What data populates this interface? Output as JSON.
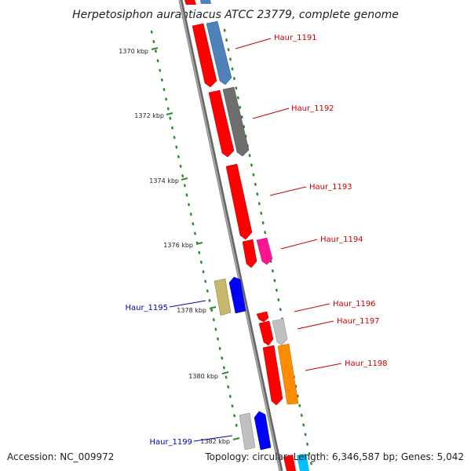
{
  "title": "Herpetosiphon aurantiacus ATCC 23779, complete genome",
  "footer": {
    "accession": "Accession: NC_009972",
    "summary": "Topology: circular; Length: 6,346,587 bp; Genes: 5,042"
  },
  "ruler": {
    "ticks": [
      "1370 kbp",
      "1372 kbp",
      "1374 kbp",
      "1376 kbp",
      "1378 kbp",
      "1380 kbp",
      "1382 kbp"
    ]
  },
  "genes": [
    {
      "label": "Haur_1191",
      "strand": "forward",
      "color": "#cc0000"
    },
    {
      "label": "Haur_1192",
      "strand": "forward",
      "color": "#cc0000"
    },
    {
      "label": "Haur_1193",
      "strand": "forward",
      "color": "#cc0000"
    },
    {
      "label": "Haur_1194",
      "strand": "forward",
      "color": "#cc0000"
    },
    {
      "label": "Haur_1195",
      "strand": "reverse",
      "color": "#0000bb"
    },
    {
      "label": "Haur_1196",
      "strand": "forward",
      "color": "#cc0000"
    },
    {
      "label": "Haur_1197",
      "strand": "forward",
      "color": "#cc0000"
    },
    {
      "label": "Haur_1198",
      "strand": "forward",
      "color": "#cc0000"
    },
    {
      "label": "Haur_1199",
      "strand": "reverse",
      "color": "#0000bb"
    }
  ],
  "colors": {
    "backbone": "#8c8c8c",
    "forward_label": "#cc0000",
    "reverse_label": "#0000bb",
    "ruler": "#2e8b2e",
    "red_gene": "#ff0000",
    "blue_gene": "#0000ff",
    "steelblue": "#4f82b8",
    "darkgray": "#6e6e6e",
    "magenta": "#ff1493",
    "khaki": "#c8b86e",
    "lightgray": "#c0c0c0",
    "orange": "#ff8c00",
    "cyan": "#00bfff"
  }
}
